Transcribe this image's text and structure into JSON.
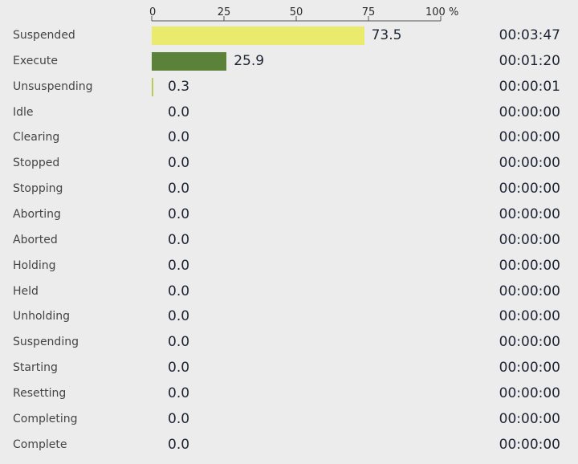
{
  "chart_data": {
    "type": "bar",
    "orientation": "horizontal",
    "title": "",
    "xlabel": "",
    "ylabel": "",
    "xlim": [
      0,
      100
    ],
    "ticks": [
      "0",
      "25",
      "50",
      "75",
      "100 %"
    ],
    "tick_values": [
      0,
      25,
      50,
      75,
      100
    ],
    "grid": false,
    "colors": {
      "Suspended": "#eaeb6c",
      "Execute": "#5a8238",
      "Unsuspending": "#b5cc5a",
      "default": "#cccccc"
    },
    "categories": [
      "Suspended",
      "Execute",
      "Unsuspending",
      "Idle",
      "Clearing",
      "Stopped",
      "Stopping",
      "Aborting",
      "Aborted",
      "Holding",
      "Held",
      "Unholding",
      "Suspending",
      "Starting",
      "Resetting",
      "Completing",
      "Complete"
    ],
    "values": [
      73.5,
      25.9,
      0.3,
      0.0,
      0.0,
      0.0,
      0.0,
      0.0,
      0.0,
      0.0,
      0.0,
      0.0,
      0.0,
      0.0,
      0.0,
      0.0,
      0.0
    ],
    "value_labels": [
      "73.5",
      "25.9",
      "0.3",
      "0.0",
      "0.0",
      "0.0",
      "0.0",
      "0.0",
      "0.0",
      "0.0",
      "0.0",
      "0.0",
      "0.0",
      "0.0",
      "0.0",
      "0.0",
      "0.0"
    ],
    "durations": [
      "00:03:47",
      "00:01:20",
      "00:00:01",
      "00:00:00",
      "00:00:00",
      "00:00:00",
      "00:00:00",
      "00:00:00",
      "00:00:00",
      "00:00:00",
      "00:00:00",
      "00:00:00",
      "00:00:00",
      "00:00:00",
      "00:00:00",
      "00:00:00",
      "00:00:00"
    ]
  }
}
